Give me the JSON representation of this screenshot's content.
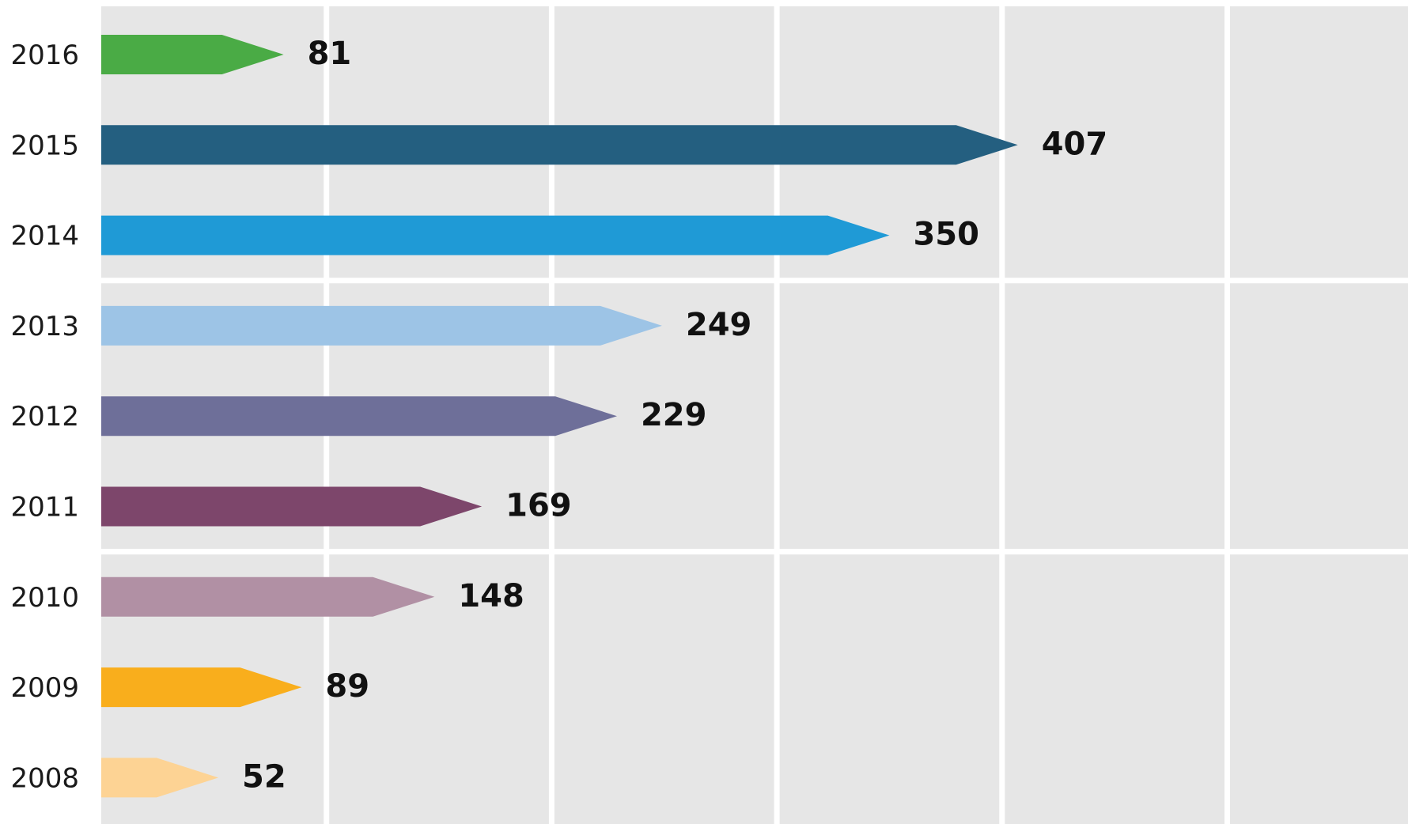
{
  "chart_data": {
    "type": "bar",
    "orientation": "horizontal",
    "title": "",
    "xlabel": "",
    "ylabel": "",
    "categories": [
      "2016",
      "2015",
      "2014",
      "2013",
      "2012",
      "2011",
      "2010",
      "2009",
      "2008"
    ],
    "values": [
      81,
      407,
      350,
      249,
      229,
      169,
      148,
      89,
      52
    ],
    "value_labels": [
      "81",
      "407",
      "350",
      "249",
      "229",
      "169",
      "148",
      "89",
      "52"
    ],
    "colors": [
      "#4aab45",
      "#245f80",
      "#1f9ad6",
      "#9dc4e6",
      "#6e6f99",
      "#7d466b",
      "#b190a4",
      "#f9ae1c",
      "#fdd394"
    ],
    "xlim": [
      0,
      500
    ],
    "grid": true,
    "legend": "none",
    "background": "#e6e6e6",
    "bar_style": "arrow-tipped"
  }
}
